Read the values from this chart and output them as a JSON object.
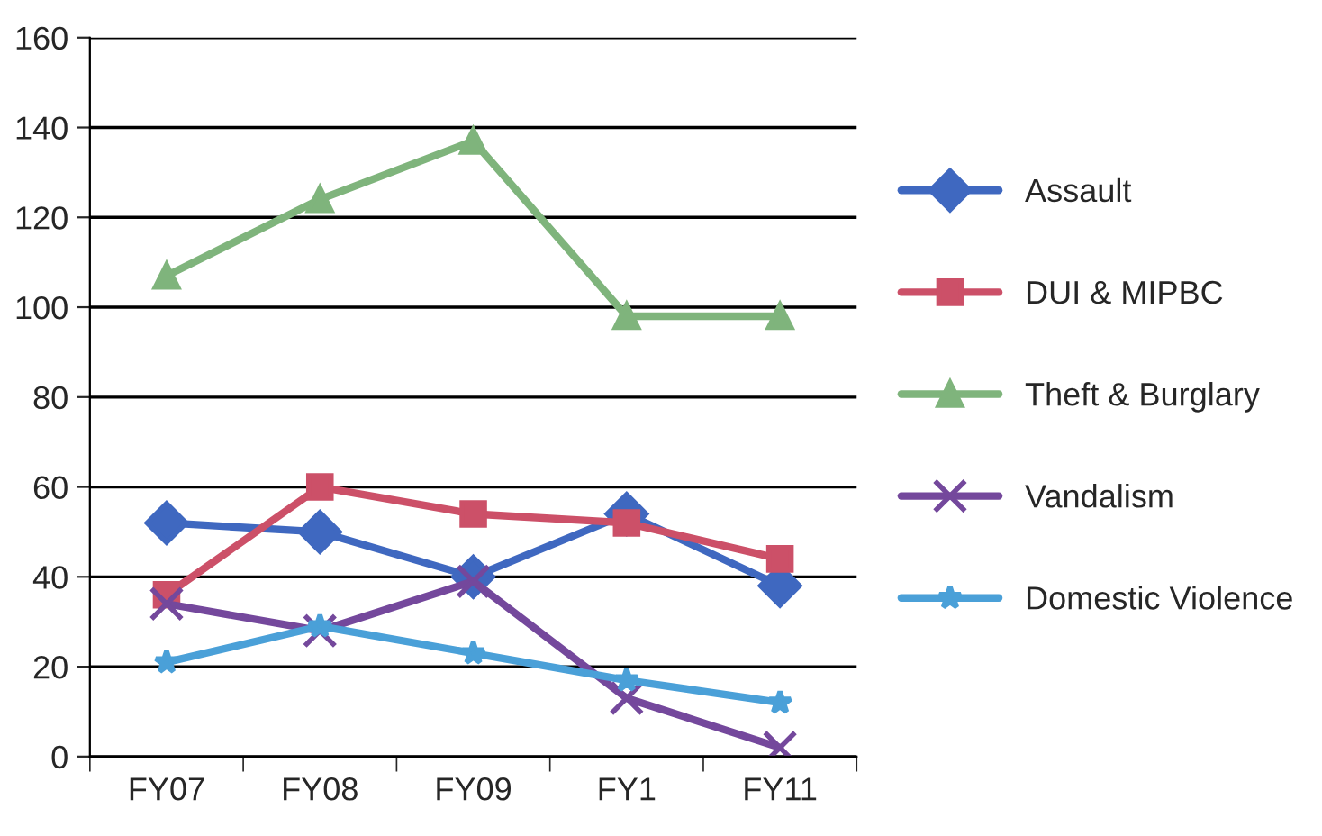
{
  "chart_data": {
    "type": "line",
    "categories": [
      "FY07",
      "FY08",
      "FY09",
      "FY1",
      "FY11"
    ],
    "series": [
      {
        "name": "Assault",
        "color": "#3f68c0",
        "marker": "diamond",
        "values": [
          52,
          50,
          40,
          54,
          38
        ]
      },
      {
        "name": "DUI & MIPBC",
        "color": "#cc5068",
        "marker": "square",
        "values": [
          36,
          60,
          54,
          52,
          44
        ]
      },
      {
        "name": "Theft & Burglary",
        "color": "#7fb47c",
        "marker": "triangle",
        "values": [
          107,
          124,
          137,
          98,
          98
        ]
      },
      {
        "name": "Vandalism",
        "color": "#74489c",
        "marker": "cross",
        "values": [
          34,
          28,
          39,
          13,
          2
        ]
      },
      {
        "name": "Domestic Violence",
        "color": "#4aa0d8",
        "marker": "star",
        "values": [
          21,
          29,
          23,
          17,
          12
        ]
      }
    ],
    "ylim": [
      0,
      160
    ],
    "yticks": [
      0,
      20,
      40,
      60,
      80,
      100,
      120,
      140,
      160
    ],
    "grid": "y",
    "legend": "right",
    "line_style": "solid"
  }
}
